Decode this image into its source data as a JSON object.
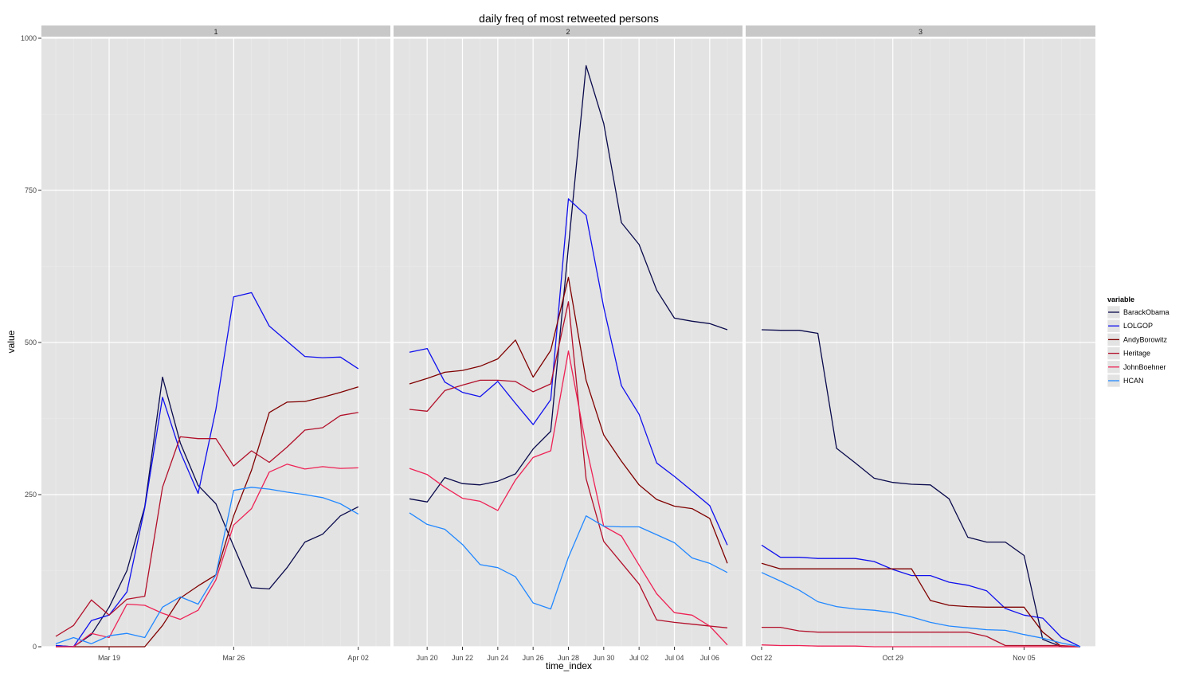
{
  "chart_data": {
    "type": "line",
    "title": "daily freq of most retweeted persons",
    "xlabel": "time_index",
    "ylabel": "value",
    "ylim": [
      0,
      1000
    ],
    "yticks": [
      0,
      250,
      500,
      750,
      1000
    ],
    "grid": true,
    "legend": {
      "title": "variable",
      "position": "right"
    },
    "series_styles": [
      {
        "name": "BarackObama",
        "color": "#0a0a4d"
      },
      {
        "name": "LOLGOP",
        "color": "#1010ee"
      },
      {
        "name": "AndyBorowitz",
        "color": "#800000"
      },
      {
        "name": "Heritage",
        "color": "#b2102a"
      },
      {
        "name": "JohnBoehner",
        "color": "#ee2255"
      },
      {
        "name": "HCAN",
        "color": "#2288ff"
      }
    ],
    "panels": [
      {
        "label": "1",
        "x": [
          "Mar 16",
          "Mar 17",
          "Mar 18",
          "Mar 19",
          "Mar 20",
          "Mar 21",
          "Mar 22",
          "Mar 23",
          "Mar 24",
          "Mar 25",
          "Mar 26",
          "Mar 27",
          "Mar 28",
          "Mar 29",
          "Mar 30",
          "Mar 31",
          "Apr 01",
          "Apr 02",
          "Apr 03"
        ],
        "xticks": [
          "Mar 19",
          "Mar 26",
          "Apr 02"
        ],
        "series": [
          {
            "name": "BarackObama",
            "values": [
              2,
              0,
              20,
              65,
              125,
              230,
              443,
              335,
              265,
              235,
              165,
              97,
              95,
              130,
              172,
              185,
              215,
              230,
              null
            ]
          },
          {
            "name": "LOLGOP",
            "values": [
              2,
              0,
              43,
              52,
              90,
              228,
              410,
              320,
              252,
              390,
              575,
              582,
              527,
              502,
              477,
              475,
              476,
              457,
              null
            ]
          },
          {
            "name": "AndyBorowitz",
            "values": [
              0,
              0,
              0,
              0,
              0,
              0,
              35,
              80,
              100,
              118,
              215,
              290,
              385,
              402,
              403,
              410,
              418,
              427,
              null
            ]
          },
          {
            "name": "Heritage",
            "values": [
              17,
              35,
              77,
              52,
              78,
              83,
              262,
              345,
              342,
              342,
              297,
              322,
              303,
              328,
              356,
              360,
              380,
              385,
              null
            ]
          },
          {
            "name": "JohnBoehner",
            "values": [
              0,
              0,
              22,
              15,
              70,
              68,
              55,
              45,
              60,
              110,
              200,
              227,
              287,
              300,
              292,
              296,
              293,
              294,
              null
            ]
          },
          {
            "name": "HCAN",
            "values": [
              5,
              15,
              5,
              18,
              22,
              15,
              65,
              82,
              70,
              118,
              257,
              262,
              259,
              254,
              250,
              245,
              235,
              218,
              null
            ]
          }
        ]
      },
      {
        "label": "2",
        "x": [
          "Jun 19",
          "Jun 20",
          "Jun 21",
          "Jun 22",
          "Jun 23",
          "Jun 24",
          "Jun 25",
          "Jun 26",
          "Jun 27",
          "Jun 28",
          "Jun 29",
          "Jun 30",
          "Jul 01",
          "Jul 02",
          "Jul 03",
          "Jul 04",
          "Jul 05",
          "Jul 06",
          "Jul 07"
        ],
        "xticks": [
          "Jun 20",
          "Jun 22",
          "Jun 24",
          "Jun 26",
          "Jun 28",
          "Jun 30",
          "Jul 02",
          "Jul 04",
          "Jul 06"
        ],
        "series": [
          {
            "name": "BarackObama",
            "values": [
              243,
              238,
              278,
              268,
              266,
              272,
              284,
              325,
              354,
              657,
              955,
              860,
              697,
              661,
              586,
              540,
              535,
              531,
              521
            ]
          },
          {
            "name": "LOLGOP",
            "values": [
              484,
              490,
              435,
              418,
              411,
              436,
              400,
              365,
              406,
              736,
              709,
              558,
              429,
              382,
              302,
              280,
              256,
              232,
              167
            ]
          },
          {
            "name": "AndyBorowitz",
            "values": [
              432,
              441,
              451,
              454,
              461,
              473,
              504,
              443,
              487,
              607,
              438,
              348,
              305,
              266,
              242,
              231,
              227,
              211,
              137
            ]
          },
          {
            "name": "Heritage",
            "values": [
              390,
              387,
              421,
              430,
              438,
              438,
              436,
              419,
              432,
              567,
              276,
              173,
              138,
              103,
              44,
              40,
              37,
              34,
              31
            ]
          },
          {
            "name": "JohnBoehner",
            "values": [
              293,
              283,
              262,
              244,
              239,
              224,
              274,
              311,
              322,
              486,
              330,
              198,
              182,
              134,
              87,
              56,
              52,
              34,
              3
            ]
          },
          {
            "name": "HCAN",
            "values": [
              220,
              201,
              193,
              168,
              135,
              130,
              115,
              72,
              62,
              147,
              215,
              198,
              197,
              197,
              184,
              171,
              146,
              137,
              122
            ]
          }
        ]
      },
      {
        "label": "3",
        "x": [
          "Oct 22",
          "Oct 23",
          "Oct 24",
          "Oct 25",
          "Oct 26",
          "Oct 27",
          "Oct 28",
          "Oct 29",
          "Oct 30",
          "Oct 31",
          "Nov 01",
          "Nov 02",
          "Nov 03",
          "Nov 04",
          "Nov 05",
          "Nov 06",
          "Nov 07",
          "Nov 08"
        ],
        "xticks": [
          "Oct 22",
          "Oct 29",
          "Nov 05"
        ],
        "series": [
          {
            "name": "BarackObama",
            "values": [
              521,
              520,
              520,
              515,
              326,
              302,
              277,
              270,
              267,
              266,
              243,
              180,
              172,
              172,
              150,
              12,
              0,
              0
            ]
          },
          {
            "name": "LOLGOP",
            "values": [
              167,
              147,
              147,
              145,
              145,
              145,
              140,
              127,
              117,
              117,
              106,
              101,
              92,
              63,
              52,
              47,
              15,
              0
            ]
          },
          {
            "name": "AndyBorowitz",
            "values": [
              137,
              128,
              128,
              128,
              128,
              128,
              128,
              128,
              128,
              76,
              68,
              66,
              65,
              65,
              65,
              24,
              0,
              0
            ]
          },
          {
            "name": "Heritage",
            "values": [
              32,
              32,
              26,
              24,
              24,
              24,
              24,
              24,
              24,
              24,
              24,
              24,
              17,
              2,
              2,
              2,
              2,
              0
            ]
          },
          {
            "name": "JohnBoehner",
            "values": [
              3,
              2,
              2,
              1,
              1,
              1,
              0,
              0,
              0,
              0,
              0,
              0,
              0,
              0,
              0,
              0,
              0,
              0
            ]
          },
          {
            "name": "HCAN",
            "values": [
              122,
              108,
              93,
              74,
              66,
              62,
              60,
              56,
              49,
              40,
              34,
              31,
              28,
              27,
              20,
              14,
              6,
              0
            ]
          }
        ]
      }
    ]
  }
}
